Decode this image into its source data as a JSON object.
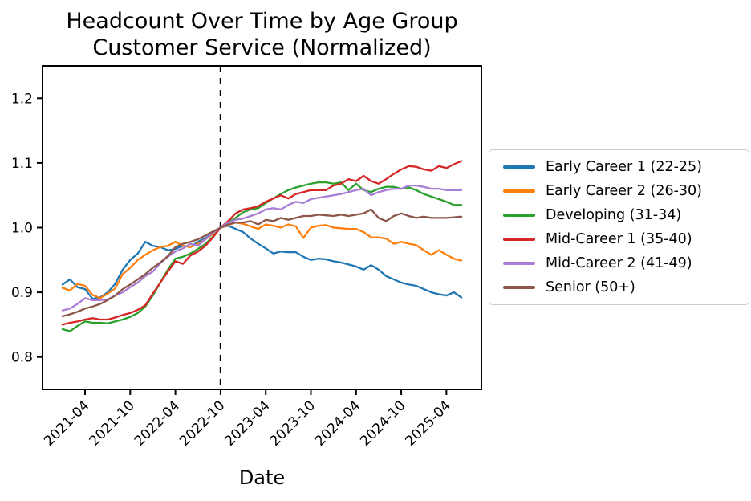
{
  "chart_data": {
    "type": "line",
    "title_line1": "Headcount Over Time by Age Group",
    "title_line2": "Customer Service (Normalized)",
    "xlabel": "Date",
    "ylabel": "",
    "grid": false,
    "legend_position": "right-outside",
    "ylim": [
      0.75,
      1.25
    ],
    "y_ticks": [
      0.8,
      0.9,
      1.0,
      1.1,
      1.2
    ],
    "x": [
      "2021-01",
      "2021-02",
      "2021-03",
      "2021-04",
      "2021-05",
      "2021-06",
      "2021-07",
      "2021-08",
      "2021-09",
      "2021-10",
      "2021-11",
      "2021-12",
      "2022-01",
      "2022-02",
      "2022-03",
      "2022-04",
      "2022-05",
      "2022-06",
      "2022-07",
      "2022-08",
      "2022-09",
      "2022-10",
      "2022-11",
      "2022-12",
      "2023-01",
      "2023-02",
      "2023-03",
      "2023-04",
      "2023-05",
      "2023-06",
      "2023-07",
      "2023-08",
      "2023-09",
      "2023-10",
      "2023-11",
      "2023-12",
      "2024-01",
      "2024-02",
      "2024-03",
      "2024-04",
      "2024-05",
      "2024-06",
      "2024-07",
      "2024-08",
      "2024-09",
      "2024-10",
      "2024-11",
      "2024-12",
      "2025-01",
      "2025-02",
      "2025-03",
      "2025-04",
      "2025-05",
      "2025-06"
    ],
    "x_tick_labels": [
      "2021-04",
      "2021-10",
      "2022-04",
      "2022-10",
      "2023-04",
      "2023-10",
      "2024-04",
      "2024-10",
      "2025-04"
    ],
    "vline_date": "2022-10",
    "axis_color": "#000000",
    "vline_color": "#000000",
    "series": [
      {
        "name": "Early Career 1 (22-25)",
        "color": "#1f77b4",
        "values": [
          0.912,
          0.92,
          0.908,
          0.905,
          0.89,
          0.892,
          0.9,
          0.913,
          0.935,
          0.95,
          0.96,
          0.978,
          0.972,
          0.97,
          0.965,
          0.967,
          0.972,
          0.97,
          0.978,
          0.984,
          0.992,
          1.0,
          1.003,
          0.998,
          0.993,
          0.983,
          0.975,
          0.968,
          0.96,
          0.963,
          0.962,
          0.962,
          0.955,
          0.95,
          0.952,
          0.951,
          0.948,
          0.946,
          0.943,
          0.94,
          0.935,
          0.942,
          0.935,
          0.925,
          0.92,
          0.915,
          0.912,
          0.91,
          0.905,
          0.9,
          0.897,
          0.895,
          0.9,
          0.892
        ]
      },
      {
        "name": "Early Career 2 (26-30)",
        "color": "#ff7f0e",
        "values": [
          0.907,
          0.903,
          0.913,
          0.91,
          0.896,
          0.891,
          0.898,
          0.906,
          0.928,
          0.938,
          0.95,
          0.958,
          0.965,
          0.97,
          0.972,
          0.978,
          0.972,
          0.97,
          0.975,
          0.982,
          0.99,
          1.0,
          1.004,
          1.008,
          1.006,
          1.002,
          0.998,
          1.005,
          1.003,
          1.0,
          1.005,
          1.002,
          0.984,
          1.0,
          1.003,
          1.004,
          1.0,
          0.999,
          0.998,
          0.998,
          0.993,
          0.985,
          0.985,
          0.983,
          0.975,
          0.978,
          0.975,
          0.973,
          0.965,
          0.958,
          0.965,
          0.958,
          0.952,
          0.949
        ]
      },
      {
        "name": "Developing (31-34)",
        "color": "#2ca02c",
        "values": [
          0.843,
          0.84,
          0.848,
          0.855,
          0.853,
          0.853,
          0.852,
          0.855,
          0.858,
          0.862,
          0.868,
          0.878,
          0.895,
          0.915,
          0.935,
          0.952,
          0.955,
          0.96,
          0.967,
          0.975,
          0.986,
          1.0,
          1.008,
          1.015,
          1.024,
          1.028,
          1.03,
          1.038,
          1.045,
          1.052,
          1.058,
          1.062,
          1.065,
          1.068,
          1.07,
          1.07,
          1.068,
          1.07,
          1.058,
          1.068,
          1.058,
          1.055,
          1.06,
          1.063,
          1.063,
          1.06,
          1.062,
          1.058,
          1.052,
          1.048,
          1.044,
          1.04,
          1.035,
          1.035
        ]
      },
      {
        "name": "Mid-Career 1 (35-40)",
        "color": "#d62728",
        "values": [
          0.85,
          0.853,
          0.855,
          0.858,
          0.86,
          0.858,
          0.858,
          0.861,
          0.865,
          0.868,
          0.873,
          0.88,
          0.898,
          0.915,
          0.932,
          0.948,
          0.944,
          0.957,
          0.963,
          0.972,
          0.985,
          1.0,
          1.01,
          1.022,
          1.028,
          1.03,
          1.033,
          1.04,
          1.045,
          1.05,
          1.045,
          1.052,
          1.055,
          1.058,
          1.058,
          1.058,
          1.065,
          1.068,
          1.075,
          1.072,
          1.08,
          1.072,
          1.068,
          1.075,
          1.083,
          1.09,
          1.095,
          1.094,
          1.09,
          1.088,
          1.095,
          1.092,
          1.098,
          1.103
        ]
      },
      {
        "name": "Mid-Career 2 (41-49)",
        "color": "#a97ed6",
        "values": [
          0.872,
          0.875,
          0.882,
          0.891,
          0.888,
          0.888,
          0.889,
          0.895,
          0.9,
          0.908,
          0.915,
          0.925,
          0.932,
          0.945,
          0.955,
          0.963,
          0.968,
          0.975,
          0.972,
          0.982,
          0.992,
          1.0,
          1.008,
          1.012,
          1.014,
          1.018,
          1.022,
          1.028,
          1.03,
          1.028,
          1.035,
          1.04,
          1.038,
          1.044,
          1.046,
          1.048,
          1.05,
          1.052,
          1.055,
          1.058,
          1.06,
          1.05,
          1.055,
          1.058,
          1.06,
          1.06,
          1.065,
          1.065,
          1.063,
          1.06,
          1.06,
          1.058,
          1.058,
          1.058
        ]
      },
      {
        "name": "Senior (50+)",
        "color": "#8c564b",
        "values": [
          0.863,
          0.866,
          0.87,
          0.875,
          0.878,
          0.882,
          0.888,
          0.895,
          0.905,
          0.912,
          0.92,
          0.928,
          0.938,
          0.946,
          0.956,
          0.97,
          0.975,
          0.978,
          0.982,
          0.988,
          0.994,
          1.0,
          1.005,
          1.008,
          1.008,
          1.01,
          1.005,
          1.012,
          1.01,
          1.015,
          1.012,
          1.015,
          1.018,
          1.018,
          1.02,
          1.019,
          1.018,
          1.02,
          1.018,
          1.02,
          1.022,
          1.028,
          1.015,
          1.01,
          1.018,
          1.022,
          1.018,
          1.015,
          1.017,
          1.015,
          1.015,
          1.015,
          1.016,
          1.017
        ]
      }
    ]
  }
}
